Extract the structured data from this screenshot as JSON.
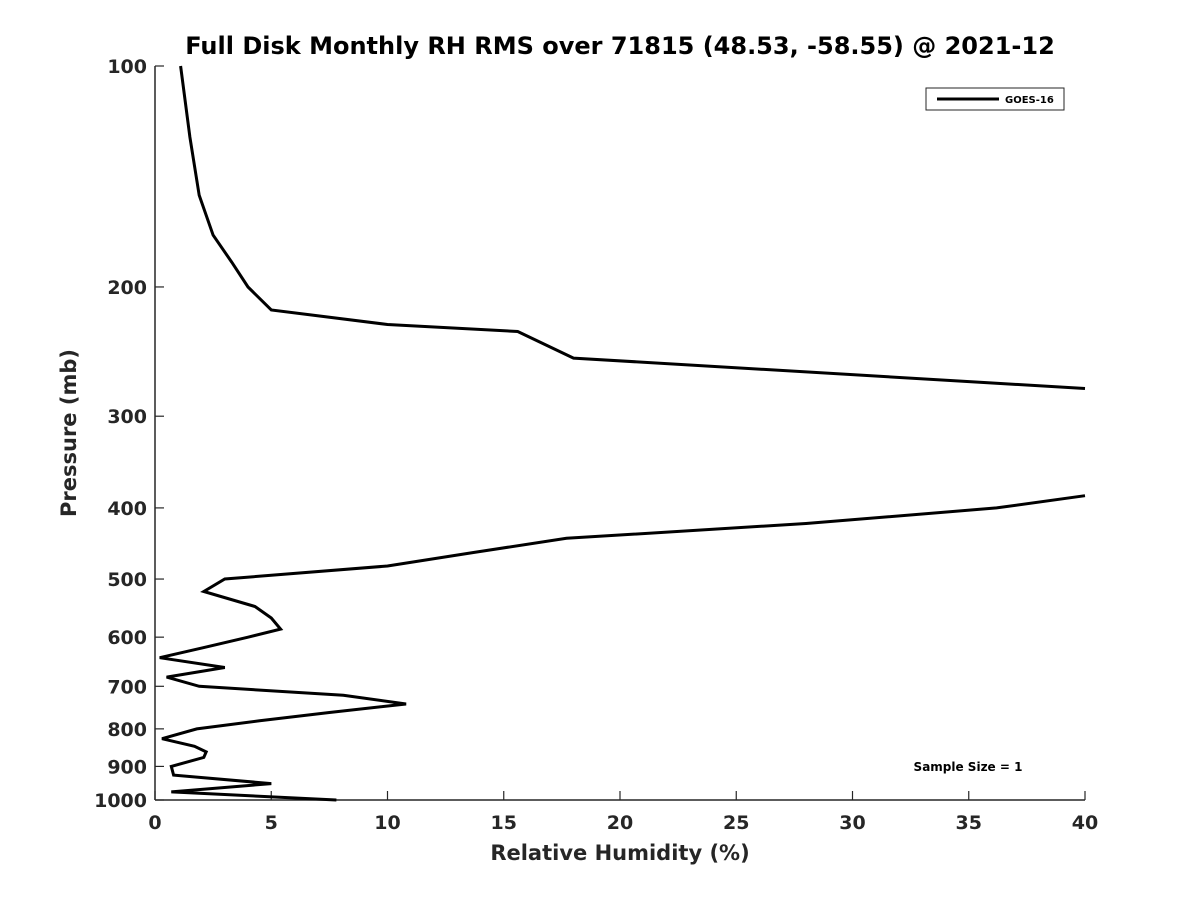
{
  "chart_data": {
    "type": "line",
    "title": "Full Disk Monthly RH RMS over 71815 (48.53, -58.55) @ 2021-12",
    "xlabel": "Relative Humidity (%)",
    "ylabel": "Pressure (mb)",
    "xlim": [
      0,
      40
    ],
    "ylim": [
      100,
      1000
    ],
    "y_scale": "log",
    "y_reversed": true,
    "grid": false,
    "legend_position": "top-right",
    "x_ticks": [
      "0",
      "5",
      "10",
      "15",
      "20",
      "25",
      "30",
      "35",
      "40"
    ],
    "y_ticks": [
      "100",
      "200",
      "300",
      "400",
      "500",
      "600",
      "700",
      "800",
      "900",
      "1000"
    ],
    "annotation": "Sample Size = 1",
    "series": [
      {
        "name": "GOES-16",
        "color": "#000000",
        "segments": [
          [
            {
              "x": 1.1,
              "p": 100
            },
            {
              "x": 1.5,
              "p": 125
            },
            {
              "x": 1.9,
              "p": 150
            },
            {
              "x": 2.5,
              "p": 170
            },
            {
              "x": 3.3,
              "p": 185
            },
            {
              "x": 4.0,
              "p": 200
            },
            {
              "x": 5.0,
              "p": 215
            },
            {
              "x": 10.0,
              "p": 225
            },
            {
              "x": 15.6,
              "p": 230
            },
            {
              "x": 18.0,
              "p": 250
            },
            {
              "x": 40.0,
              "p": 275
            }
          ],
          [
            {
              "x": 40.0,
              "p": 385
            },
            {
              "x": 36.2,
              "p": 400
            },
            {
              "x": 28.0,
              "p": 420
            },
            {
              "x": 17.7,
              "p": 440
            },
            {
              "x": 13.7,
              "p": 460
            },
            {
              "x": 10.0,
              "p": 480
            },
            {
              "x": 3.0,
              "p": 500
            },
            {
              "x": 2.1,
              "p": 520
            },
            {
              "x": 4.3,
              "p": 545
            },
            {
              "x": 5.0,
              "p": 565
            },
            {
              "x": 5.4,
              "p": 585
            },
            {
              "x": 4.0,
              "p": 600
            },
            {
              "x": 2.1,
              "p": 620
            },
            {
              "x": 0.2,
              "p": 640
            },
            {
              "x": 3.0,
              "p": 660
            },
            {
              "x": 0.5,
              "p": 680
            },
            {
              "x": 1.9,
              "p": 700
            },
            {
              "x": 8.1,
              "p": 720
            },
            {
              "x": 10.8,
              "p": 740
            },
            {
              "x": 7.5,
              "p": 760
            },
            {
              "x": 4.5,
              "p": 780
            },
            {
              "x": 1.8,
              "p": 800
            },
            {
              "x": 0.3,
              "p": 825
            },
            {
              "x": 1.7,
              "p": 845
            },
            {
              "x": 2.2,
              "p": 860
            },
            {
              "x": 2.1,
              "p": 875
            },
            {
              "x": 0.7,
              "p": 900
            },
            {
              "x": 0.8,
              "p": 925
            },
            {
              "x": 5.0,
              "p": 950
            },
            {
              "x": 0.7,
              "p": 975
            },
            {
              "x": 7.8,
              "p": 1000
            }
          ]
        ]
      }
    ]
  }
}
